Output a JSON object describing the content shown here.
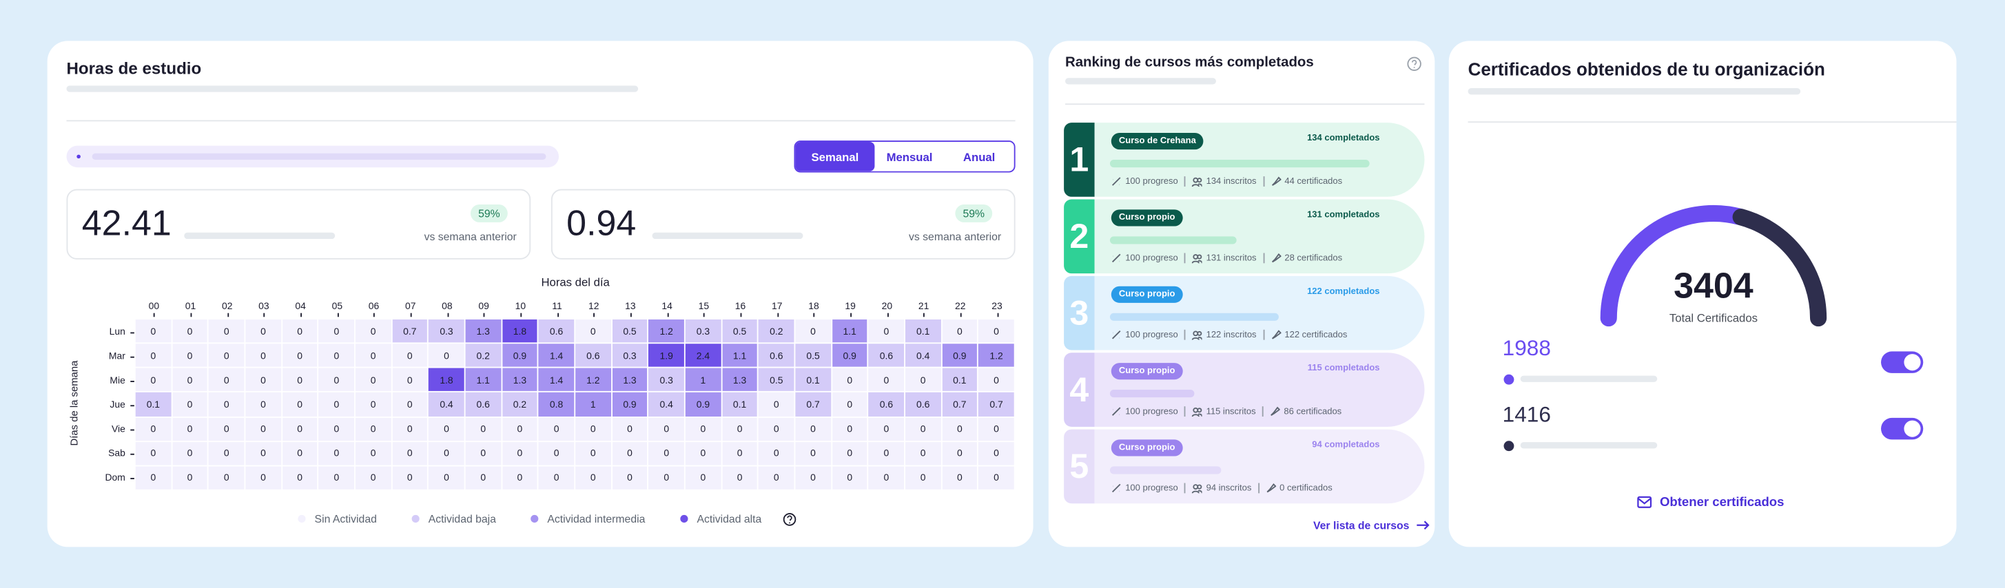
{
  "study": {
    "title": "Horas de estudio",
    "periods": [
      "Semanal",
      "Mensual",
      "Anual"
    ],
    "stats": [
      {
        "value": "42.41",
        "badge": "59%",
        "caption": "vs semana anterior"
      },
      {
        "value": "0.94",
        "badge": "59%",
        "caption": "vs semana anterior"
      }
    ],
    "heatmap": {
      "x_label": "Horas del día",
      "y_label": "Días de la semana",
      "hours": [
        "00",
        "01",
        "02",
        "03",
        "04",
        "05",
        "06",
        "07",
        "08",
        "09",
        "10",
        "11",
        "12",
        "13",
        "14",
        "15",
        "16",
        "17",
        "18",
        "19",
        "20",
        "21",
        "22",
        "23"
      ],
      "days": [
        "Lun",
        "Mar",
        "Mie",
        "Jue",
        "Vie",
        "Sab",
        "Dom"
      ],
      "values": [
        [
          0,
          0,
          0,
          0,
          0,
          0,
          0,
          0.7,
          0.3,
          1.3,
          1.8,
          0.6,
          0,
          0.5,
          1.2,
          0.3,
          0.5,
          0.2,
          0,
          1.1,
          0,
          0.1,
          0,
          0
        ],
        [
          0,
          0,
          0,
          0,
          0,
          0,
          0,
          0,
          0,
          0.2,
          0.9,
          1.4,
          0.6,
          0.3,
          1.9,
          2.4,
          1.1,
          0.6,
          0.5,
          0.9,
          0.6,
          0.4,
          0.9,
          1.2
        ],
        [
          0,
          0,
          0,
          0,
          0,
          0,
          0,
          0,
          1.8,
          1.1,
          1.3,
          1.4,
          1.2,
          1.3,
          0.3,
          1,
          1.3,
          0.5,
          0.1,
          0,
          0,
          0,
          0.1,
          0
        ],
        [
          0.1,
          0,
          0,
          0,
          0,
          0,
          0,
          0,
          0.4,
          0.6,
          0.2,
          0.8,
          1,
          0.9,
          0.4,
          0.9,
          0.1,
          0,
          0.7,
          0,
          0.6,
          0.6,
          0.7,
          0.7
        ],
        [
          0,
          0,
          0,
          0,
          0,
          0,
          0,
          0,
          0,
          0,
          0,
          0,
          0,
          0,
          0,
          0,
          0,
          0,
          0,
          0,
          0,
          0,
          0,
          0
        ],
        [
          0,
          0,
          0,
          0,
          0,
          0,
          0,
          0,
          0,
          0,
          0,
          0,
          0,
          0,
          0,
          0,
          0,
          0,
          0,
          0,
          0,
          0,
          0,
          0
        ],
        [
          0,
          0,
          0,
          0,
          0,
          0,
          0,
          0,
          0,
          0,
          0,
          0,
          0,
          0,
          0,
          0,
          0,
          0,
          0,
          0,
          0,
          0,
          0,
          0
        ]
      ],
      "legend": [
        {
          "label": "Sin Actividad",
          "color": "#f3f1fd"
        },
        {
          "label": "Actividad baja",
          "color": "#d4cbf8"
        },
        {
          "label": "Actividad intermedia",
          "color": "#a593f1"
        },
        {
          "label": "Actividad alta",
          "color": "#6e50e8"
        }
      ]
    }
  },
  "ranking": {
    "title": "Ranking de cursos más completados",
    "items": [
      {
        "rank": 1,
        "tag": "Curso de Crehana",
        "completed": "134 completados",
        "progress": "100 progreso",
        "enrolled": "134 inscritos",
        "certificates": "44 certificados"
      },
      {
        "rank": 2,
        "tag": "Curso propio",
        "completed": "131 completados",
        "progress": "100 progreso",
        "enrolled": "131 inscritos",
        "certificates": "28 certificados"
      },
      {
        "rank": 3,
        "tag": "Curso propio",
        "completed": "122 completados",
        "progress": "100 progreso",
        "enrolled": "122 inscritos",
        "certificates": "122 certificados"
      },
      {
        "rank": 4,
        "tag": "Curso propio",
        "completed": "115 completados",
        "progress": "100 progreso",
        "enrolled": "115 inscritos",
        "certificates": "86 certificados"
      },
      {
        "rank": 5,
        "tag": "Curso propio",
        "completed": "94 completados",
        "progress": "100 progreso",
        "enrolled": "94 inscritos",
        "certificates": "0 certificados"
      }
    ],
    "link": "Ver lista de cursos"
  },
  "certificates": {
    "title": "Certificados obtenidos de tu organización",
    "total": 3404,
    "total_label": "Total Certificados",
    "items": [
      {
        "value": 1988,
        "color": "#6a4cf0"
      },
      {
        "value": 1416,
        "color": "#2e2e4d"
      }
    ],
    "action": "Obtener certificados"
  }
}
